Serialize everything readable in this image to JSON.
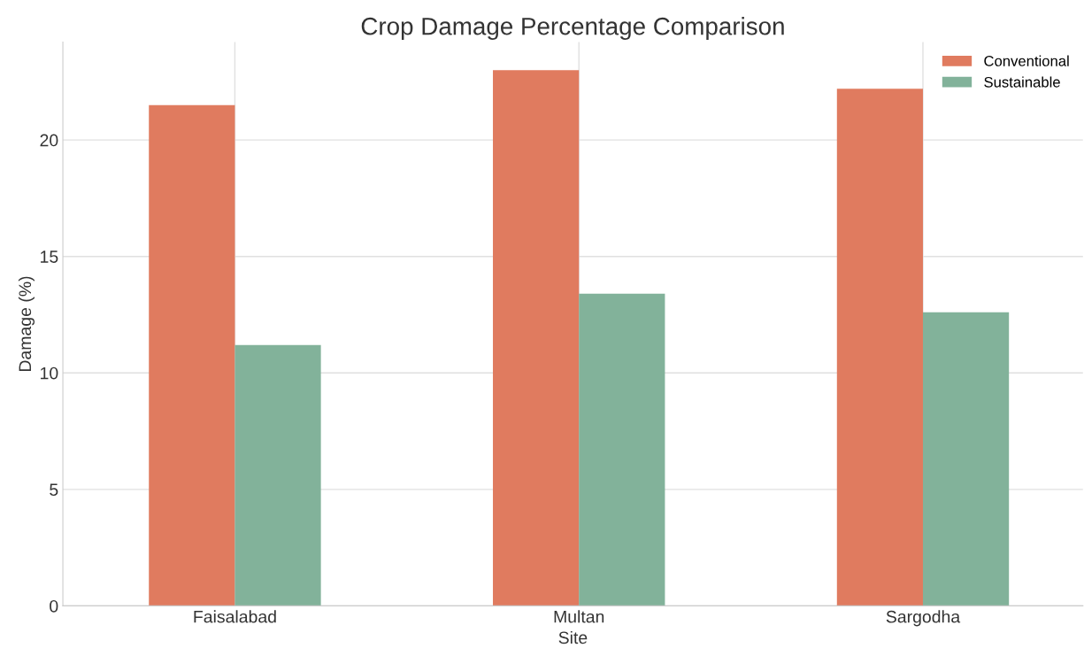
{
  "chart_data": {
    "type": "bar",
    "title": "Crop Damage Percentage Comparison",
    "xlabel": "Site",
    "ylabel": "Damage (%)",
    "categories": [
      "Faisalabad",
      "Multan",
      "Sargodha"
    ],
    "series": [
      {
        "name": "Conventional",
        "color": "#e07b5f",
        "values": [
          21.5,
          23.0,
          22.2
        ]
      },
      {
        "name": "Sustainable",
        "color": "#82b29a",
        "values": [
          11.2,
          13.4,
          12.6
        ]
      }
    ],
    "ylim": [
      0,
      24.2
    ],
    "yticks": [
      0,
      5,
      10,
      15,
      20
    ],
    "grid": true,
    "legend": "top right"
  }
}
